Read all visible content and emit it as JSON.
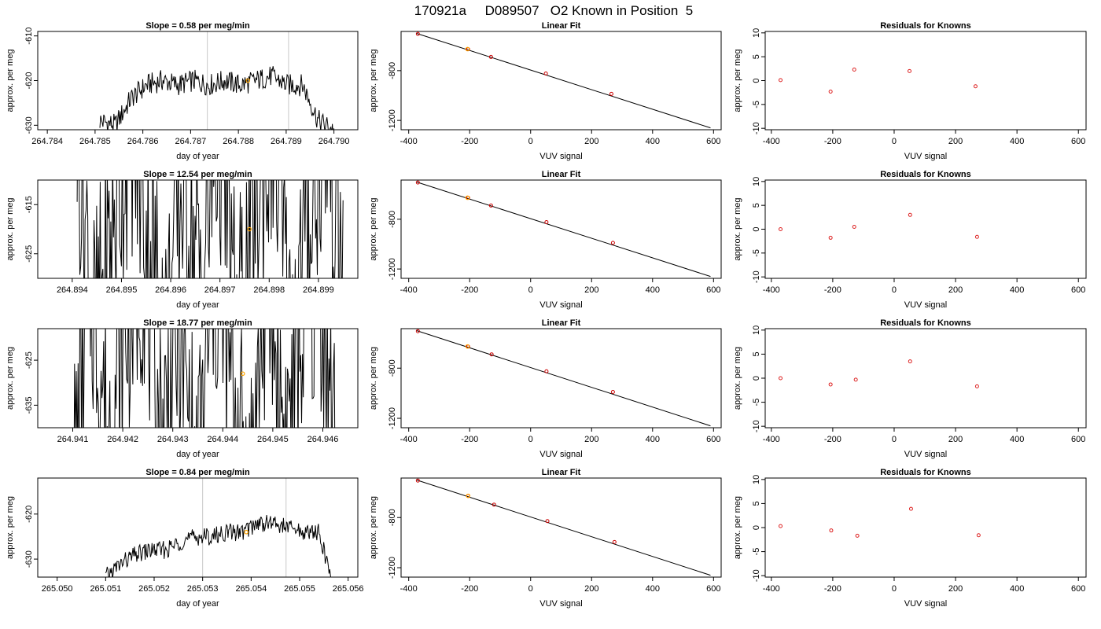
{
  "figure_title": "170921a     D089507   O2 Known in Position  5",
  "chart_data": [
    {
      "type": "line",
      "title": "Slope =  0.58  per meg/min",
      "xlabel": "day of year",
      "ylabel": "approx. per meg",
      "xlim": [
        264.7838,
        264.7905
      ],
      "ylim": [
        -631,
        -609
      ],
      "xticks": [
        "264.784",
        "264.785",
        "264.786",
        "264.787",
        "264.788",
        "264.789",
        "264.790"
      ],
      "yticks": [
        "-610",
        "-620",
        "-630"
      ],
      "ytick_values": [
        -610,
        -620,
        -630
      ],
      "vlines": [
        264.78735,
        264.78905
      ],
      "highlight": {
        "x": 264.7882,
        "y": -620
      },
      "trace": {
        "x_start": 264.7851,
        "x_end": 264.79,
        "base": [
          -629,
          -630,
          -624,
          -621,
          -620,
          -621,
          -620,
          -621,
          -620,
          -621,
          -620,
          -619,
          -621,
          -621,
          -629,
          -631
        ],
        "amplitude": 2.5
      }
    },
    {
      "type": "line",
      "title": "Linear Fit",
      "xlabel": "VUV signal",
      "ylabel": "approx. per meg",
      "xlim": [
        -425,
        625
      ],
      "ylim": [
        -1275,
        -485
      ],
      "xticks": [
        "-400",
        "-200",
        "0",
        "200",
        "400",
        "600"
      ],
      "xtick_values": [
        -400,
        -200,
        0,
        200,
        400,
        600
      ],
      "yticks": [
        "-800",
        "-1200"
      ],
      "ytick_values": [
        -800,
        -1200
      ],
      "fit_line": {
        "x": [
          -375,
          590
        ],
        "y": [
          -500,
          -1260
        ]
      },
      "points": [
        {
          "x": -370,
          "y": -505
        },
        {
          "x": -205,
          "y": -628
        },
        {
          "x": -130,
          "y": -690
        },
        {
          "x": 50,
          "y": -823
        },
        {
          "x": 265,
          "y": -987
        }
      ],
      "highlight": {
        "x": -207,
        "y": -627
      }
    },
    {
      "type": "scatter",
      "title": "Residuals for Knowns",
      "xlabel": "VUV signal",
      "ylabel": "approx. per meg",
      "xlim": [
        -420,
        625
      ],
      "ylim": [
        -10.3,
        10.3
      ],
      "xticks": [
        "-400",
        "-200",
        "0",
        "200",
        "400",
        "600"
      ],
      "xtick_values": [
        -400,
        -200,
        0,
        200,
        400,
        600
      ],
      "yticks": [
        "10",
        "5",
        "0",
        "-5",
        "-10"
      ],
      "ytick_values": [
        10,
        5,
        0,
        -5,
        -10
      ],
      "points": [
        {
          "x": -370,
          "y": 0.1
        },
        {
          "x": -207,
          "y": -2.3
        },
        {
          "x": -130,
          "y": 2.3
        },
        {
          "x": 50,
          "y": 2
        },
        {
          "x": 265,
          "y": -1.2
        }
      ]
    },
    {
      "type": "line",
      "title": "Slope =  12.54  per meg/min",
      "xlabel": "day of year",
      "ylabel": "approx. per meg",
      "xlim": [
        264.8933,
        264.8998
      ],
      "ylim": [
        -630,
        -610
      ],
      "xticks": [
        "264.894",
        "264.895",
        "264.896",
        "264.897",
        "264.898",
        "264.899"
      ],
      "yticks": [
        "-615",
        "-625"
      ],
      "ytick_values": [
        -615,
        -625
      ],
      "vlines": [],
      "highlight": {
        "x": 264.8976,
        "y": -620
      },
      "trace": {
        "x_start": 264.8941,
        "x_end": 264.8995,
        "base": [
          -600,
          -640,
          -620,
          -600,
          -620,
          -640,
          -610,
          -630,
          -600,
          -640,
          -620,
          -600,
          -640,
          -620,
          -600,
          -628
        ],
        "amplitude": 25
      }
    },
    {
      "type": "line",
      "title": "Linear Fit",
      "xlabel": "VUV signal",
      "ylabel": "approx. per meg",
      "xlim": [
        -425,
        625
      ],
      "ylim": [
        -1275,
        -485
      ],
      "xticks": [
        "-400",
        "-200",
        "0",
        "200",
        "400",
        "600"
      ],
      "xtick_values": [
        -400,
        -200,
        0,
        200,
        400,
        600
      ],
      "yticks": [
        "-800",
        "-1200"
      ],
      "ytick_values": [
        -800,
        -1200
      ],
      "fit_line": {
        "x": [
          -375,
          590
        ],
        "y": [
          -500,
          -1260
        ]
      },
      "points": [
        {
          "x": -370,
          "y": -505
        },
        {
          "x": -205,
          "y": -628
        },
        {
          "x": -130,
          "y": -690
        },
        {
          "x": 52,
          "y": -823
        },
        {
          "x": 270,
          "y": -990
        }
      ],
      "highlight": {
        "x": -207,
        "y": -627
      }
    },
    {
      "type": "scatter",
      "title": "Residuals for Knowns",
      "xlabel": "VUV signal",
      "ylabel": "approx. per meg",
      "xlim": [
        -420,
        625
      ],
      "ylim": [
        -10.3,
        10.3
      ],
      "xticks": [
        "-400",
        "-200",
        "0",
        "200",
        "400",
        "600"
      ],
      "xtick_values": [
        -400,
        -200,
        0,
        200,
        400,
        600
      ],
      "yticks": [
        "10",
        "5",
        "0",
        "-5",
        "-10"
      ],
      "ytick_values": [
        10,
        5,
        0,
        -5,
        -10
      ],
      "points": [
        {
          "x": -370,
          "y": 0
        },
        {
          "x": -207,
          "y": -1.8
        },
        {
          "x": -130,
          "y": 0.5
        },
        {
          "x": 52,
          "y": 3
        },
        {
          "x": 270,
          "y": -1.6
        }
      ]
    },
    {
      "type": "line",
      "title": "Slope =  18.77  per meg/min",
      "xlabel": "day of year",
      "ylabel": "approx. per meg",
      "xlim": [
        264.9403,
        264.9467
      ],
      "ylim": [
        -640,
        -618
      ],
      "xticks": [
        "264.941",
        "264.942",
        "264.943",
        "264.944",
        "264.945",
        "264.946"
      ],
      "yticks": [
        "-625",
        "-635"
      ],
      "ytick_values": [
        -625,
        -635
      ],
      "vlines": [],
      "highlight": {
        "x": 264.9444,
        "y": -628
      },
      "trace": {
        "x_start": 264.941,
        "x_end": 264.9463,
        "base": [
          -650,
          -610,
          -640,
          -620,
          -605,
          -640,
          -620,
          -650,
          -610,
          -630,
          -650,
          -610,
          -640,
          -620,
          -610,
          -650
        ],
        "amplitude": 25
      }
    },
    {
      "type": "line",
      "title": "Linear Fit",
      "xlabel": "VUV signal",
      "ylabel": "approx. per meg",
      "xlim": [
        -425,
        625
      ],
      "ylim": [
        -1275,
        -485
      ],
      "xticks": [
        "-400",
        "-200",
        "0",
        "200",
        "400",
        "600"
      ],
      "xtick_values": [
        -400,
        -200,
        0,
        200,
        400,
        600
      ],
      "yticks": [
        "-800",
        "-1200"
      ],
      "ytick_values": [
        -800,
        -1200
      ],
      "fit_line": {
        "x": [
          -375,
          590
        ],
        "y": [
          -500,
          -1260
        ]
      },
      "points": [
        {
          "x": -370,
          "y": -505
        },
        {
          "x": -205,
          "y": -628
        },
        {
          "x": -128,
          "y": -690
        },
        {
          "x": 52,
          "y": -825
        },
        {
          "x": 270,
          "y": -990
        }
      ],
      "highlight": {
        "x": -207,
        "y": -627
      }
    },
    {
      "type": "scatter",
      "title": "Residuals for Knowns",
      "xlabel": "VUV signal",
      "ylabel": "approx. per meg",
      "xlim": [
        -420,
        625
      ],
      "ylim": [
        -10.3,
        10.3
      ],
      "xticks": [
        "-400",
        "-200",
        "0",
        "200",
        "400",
        "600"
      ],
      "xtick_values": [
        -400,
        -200,
        0,
        200,
        400,
        600
      ],
      "yticks": [
        "10",
        "5",
        "0",
        "-5",
        "-10"
      ],
      "ytick_values": [
        10,
        5,
        0,
        -5,
        -10
      ],
      "points": [
        {
          "x": -370,
          "y": 0
        },
        {
          "x": -207,
          "y": -1.3
        },
        {
          "x": -125,
          "y": -0.3
        },
        {
          "x": 52,
          "y": 3.5
        },
        {
          "x": 270,
          "y": -1.7
        }
      ]
    },
    {
      "type": "line",
      "title": "Slope =  0.84  per meg/min",
      "xlabel": "day of year",
      "ylabel": "approx. per meg",
      "xlim": [
        265.0496,
        265.0562
      ],
      "ylim": [
        -634,
        -612
      ],
      "xticks": [
        "265.050",
        "265.051",
        "265.052",
        "265.053",
        "265.054",
        "265.055",
        "265.056"
      ],
      "yticks": [
        "-620",
        "-630"
      ],
      "ytick_values": [
        -620,
        -630
      ],
      "vlines": [
        265.053,
        265.05472
      ],
      "highlight": {
        "x": 265.0539,
        "y": -624
      },
      "trace": {
        "x_start": 265.051,
        "x_end": 265.0557,
        "base": [
          -634,
          -631,
          -629,
          -628,
          -628,
          -626,
          -625,
          -625,
          -624,
          -624,
          -622,
          -622,
          -623,
          -624,
          -624,
          -636
        ],
        "amplitude": 2
      }
    },
    {
      "type": "line",
      "title": "Linear Fit",
      "xlabel": "VUV signal",
      "ylabel": "approx. per meg",
      "xlim": [
        -425,
        625
      ],
      "ylim": [
        -1275,
        -485
      ],
      "xticks": [
        "-400",
        "-200",
        "0",
        "200",
        "400",
        "600"
      ],
      "xtick_values": [
        -400,
        -200,
        0,
        200,
        400,
        600
      ],
      "yticks": [
        "-800",
        "-1200"
      ],
      "ytick_values": [
        -800,
        -1200
      ],
      "fit_line": {
        "x": [
          -375,
          590
        ],
        "y": [
          -500,
          -1260
        ]
      },
      "points": [
        {
          "x": -370,
          "y": -505
        },
        {
          "x": -205,
          "y": -628
        },
        {
          "x": -120,
          "y": -697
        },
        {
          "x": 55,
          "y": -828
        },
        {
          "x": 275,
          "y": -995
        }
      ],
      "highlight": {
        "x": -205,
        "y": -627
      }
    },
    {
      "type": "scatter",
      "title": "Residuals for Knowns",
      "xlabel": "VUV signal",
      "ylabel": "approx. per meg",
      "xlim": [
        -420,
        625
      ],
      "ylim": [
        -10.3,
        10.3
      ],
      "xticks": [
        "-400",
        "-200",
        "0",
        "200",
        "400",
        "600"
      ],
      "xtick_values": [
        -400,
        -200,
        0,
        200,
        400,
        600
      ],
      "yticks": [
        "10",
        "5",
        "0",
        "-5",
        "-10"
      ],
      "ytick_values": [
        10,
        5,
        0,
        -5,
        -10
      ],
      "points": [
        {
          "x": -370,
          "y": 0.3
        },
        {
          "x": -205,
          "y": -0.6
        },
        {
          "x": -120,
          "y": -1.7
        },
        {
          "x": 55,
          "y": 3.9
        },
        {
          "x": 275,
          "y": -1.6
        }
      ]
    }
  ],
  "colors": {
    "line": "#000000",
    "highlight": "#ffa500",
    "point": "#cc0000",
    "vline": "#c8c8c8",
    "residual_point": "#dd2222"
  }
}
